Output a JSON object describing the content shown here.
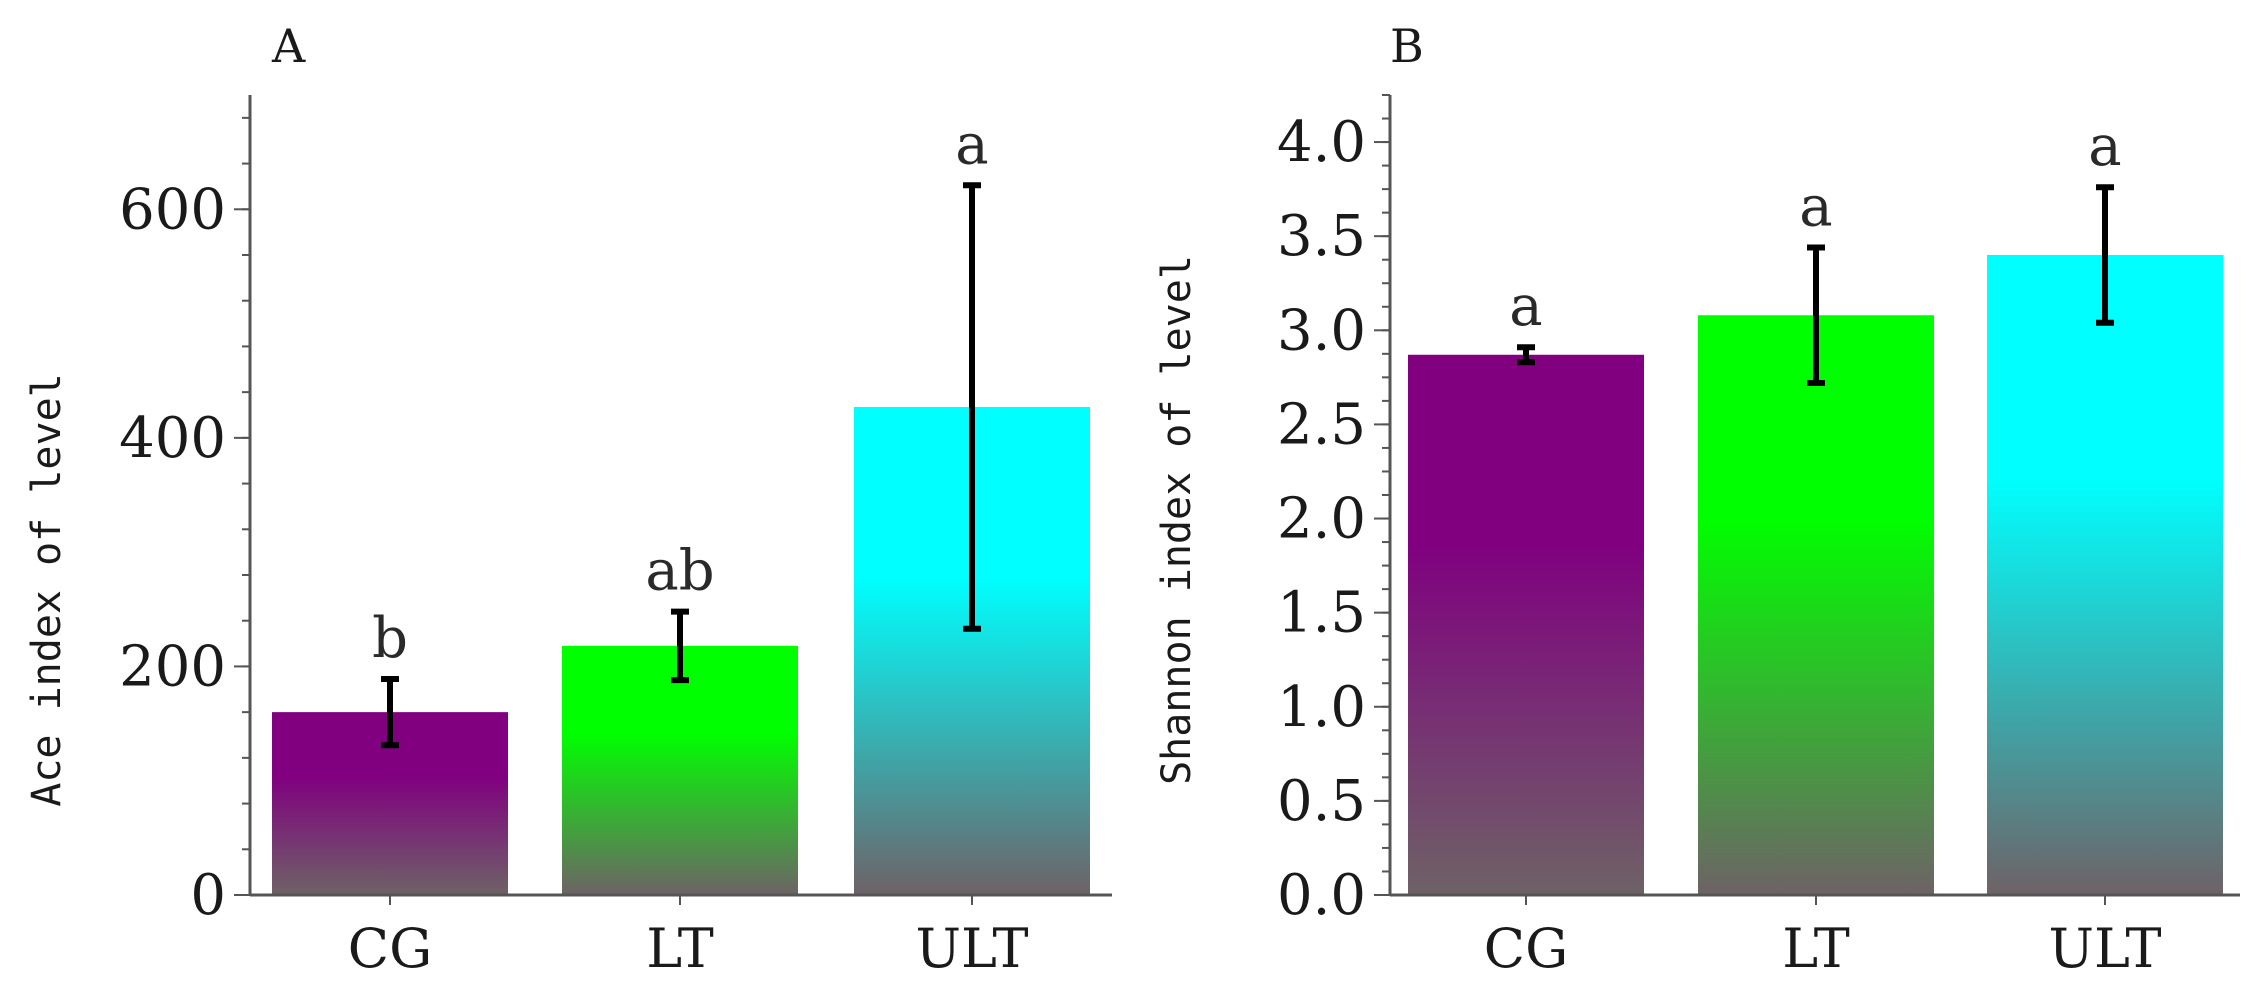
{
  "chart_data": [
    {
      "type": "bar",
      "panel": "A",
      "title": "",
      "xlabel": "",
      "ylabel": "Ace index of level",
      "categories": [
        "CG",
        "LT",
        "ULT"
      ],
      "values": [
        160,
        218,
        427
      ],
      "error": [
        29,
        30,
        194
      ],
      "significance": [
        "b",
        "ab",
        "a"
      ],
      "ylim": [
        0,
        700
      ],
      "yticks": [
        0,
        200,
        400,
        600
      ],
      "ytick_labels": [
        "0",
        "200",
        "400",
        "600"
      ],
      "colors": [
        "#800080",
        "#00ff00",
        "#00ffff"
      ],
      "grid": false
    },
    {
      "type": "bar",
      "panel": "B",
      "title": "",
      "xlabel": "",
      "ylabel": "Shannon index of level",
      "categories": [
        "CG",
        "LT",
        "ULT"
      ],
      "values": [
        2.87,
        3.08,
        3.4
      ],
      "error": [
        0.04,
        0.36,
        0.36
      ],
      "significance": [
        "a",
        "a",
        "a"
      ],
      "ylim": [
        0,
        4.25
      ],
      "yticks": [
        0,
        0.5,
        1.0,
        1.5,
        2.0,
        2.5,
        3.0,
        3.5,
        4.0
      ],
      "ytick_labels": [
        "0.0",
        "0.5",
        "1.0",
        "1.5",
        "2.0",
        "2.5",
        "3.0",
        "3.5",
        "4.0"
      ],
      "colors": [
        "#800080",
        "#00ff00",
        "#00ffff"
      ],
      "grid": false
    }
  ]
}
